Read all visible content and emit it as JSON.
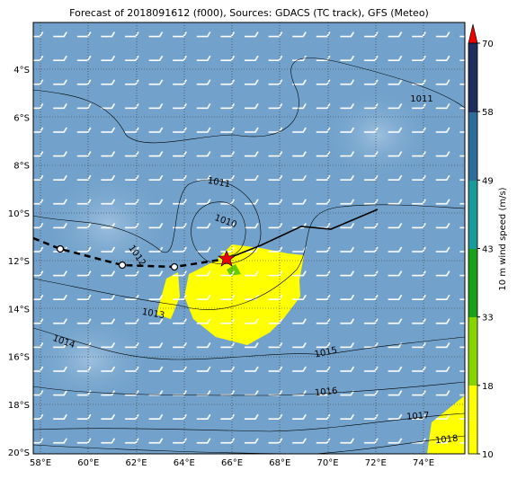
{
  "map": {
    "title": "Forecast of 2018091612 (f000), Sources: GDACS (TC track), GFS (Meteo)",
    "x_ticks": [
      "58°E",
      "60°E",
      "62°E",
      "64°E",
      "66°E",
      "68°E",
      "70°E",
      "72°E",
      "74°E"
    ],
    "y_ticks": [
      "4°S",
      "6°S",
      "8°S",
      "10°S",
      "12°S",
      "14°S",
      "16°S",
      "18°S",
      "20°S"
    ],
    "isobar_labels": [
      "1011",
      "1011",
      "1010",
      "1012",
      "1013",
      "1014",
      "1015",
      "1016",
      "1017",
      "1018"
    ]
  },
  "colorbar": {
    "label": "10 m wind speed (m/s)",
    "ticks": [
      "10",
      "18",
      "33",
      "43",
      "49",
      "58",
      "70"
    ]
  }
}
